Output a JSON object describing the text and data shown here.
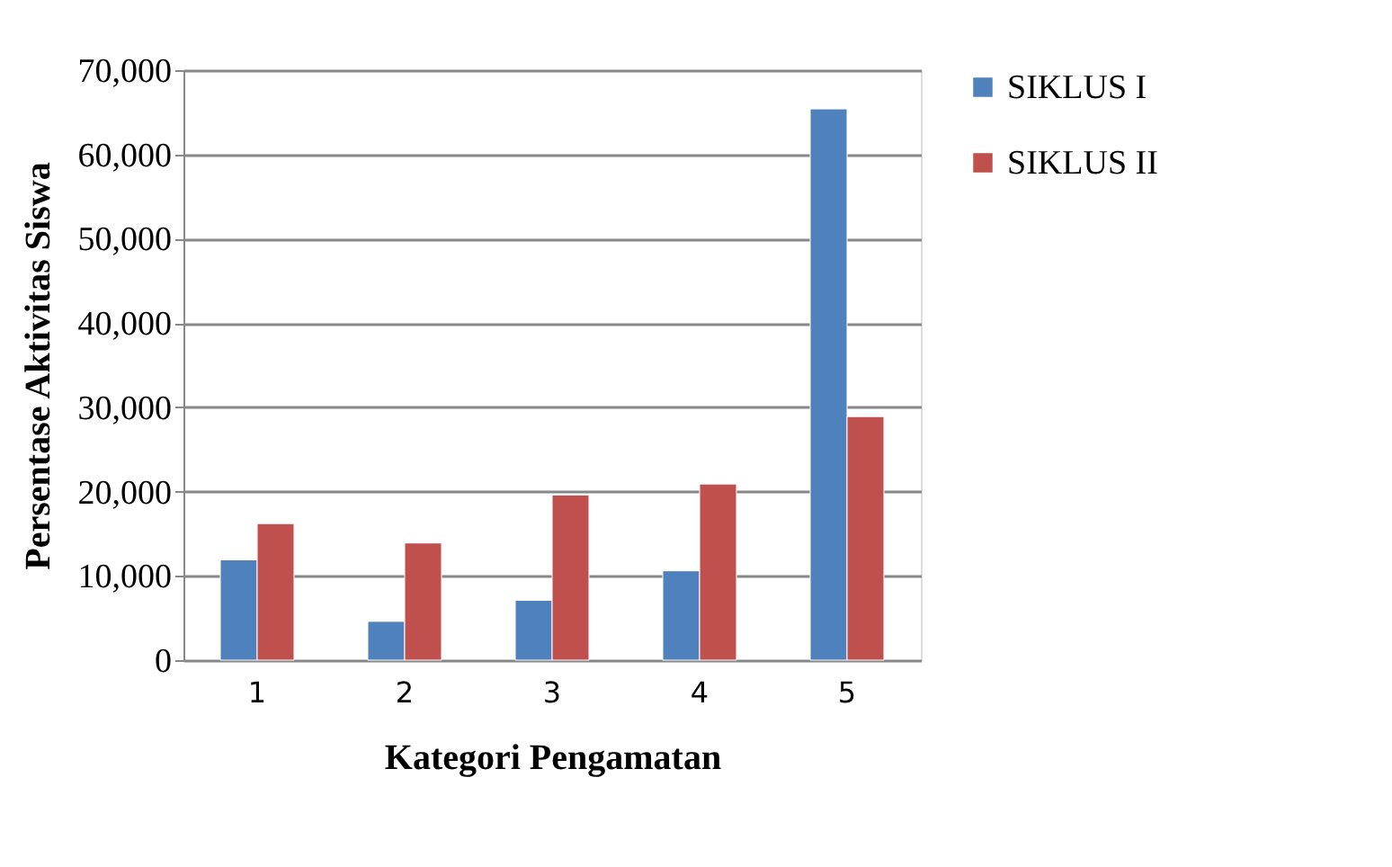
{
  "chart_data": {
    "type": "bar",
    "xlabel": "Kategori Pengamatan",
    "ylabel": "Persentase Aktivitas Siswa",
    "categories": [
      "1",
      "2",
      "3",
      "4",
      "5"
    ],
    "series": [
      {
        "name": "SIKLUS I",
        "color": "#4f81bd",
        "values": [
          11900,
          4600,
          7100,
          10600,
          65400
        ]
      },
      {
        "name": "SIKLUS II",
        "color": "#c0504d",
        "values": [
          16200,
          13900,
          19600,
          20900,
          28900
        ]
      }
    ],
    "ylim": [
      0,
      70000
    ],
    "yticks": [
      0,
      {
        "value": 10000,
        "label": "10,000"
      },
      {
        "value": 20000,
        "label": "20,000"
      },
      {
        "value": 30000,
        "label": "30,000"
      },
      {
        "value": 40000,
        "label": "40,000"
      },
      {
        "value": 50000,
        "label": "50,000"
      },
      {
        "value": 60000,
        "label": "60,000"
      },
      {
        "value": 70000,
        "label": "70,000"
      }
    ],
    "grid": true,
    "legend": "right"
  }
}
